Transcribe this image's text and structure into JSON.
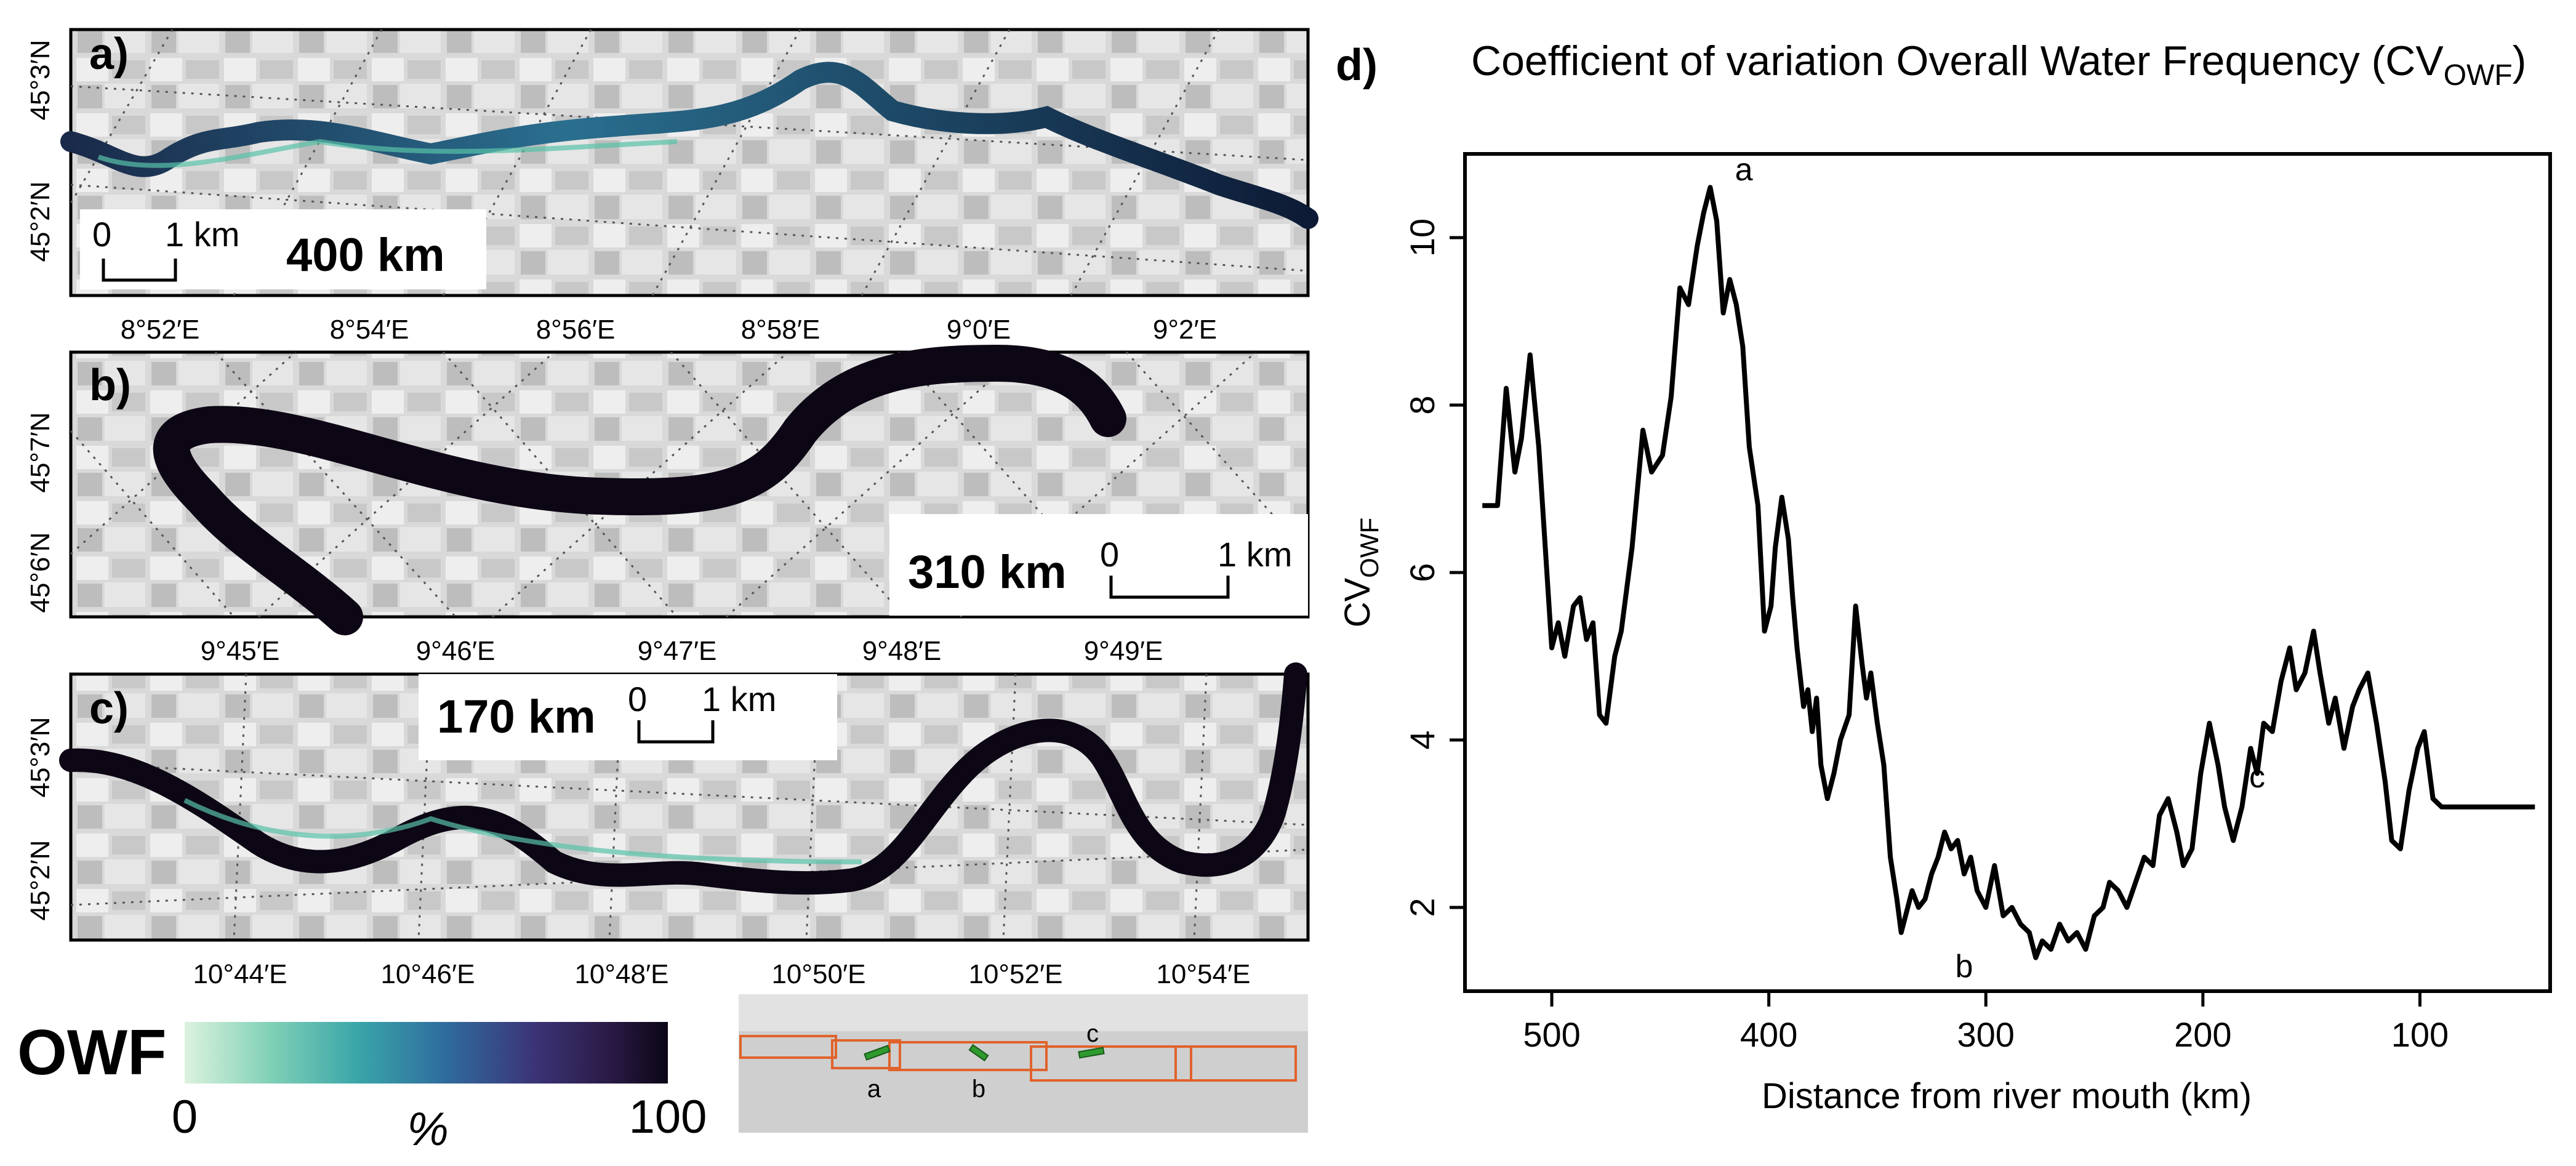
{
  "maps": [
    {
      "letter": "a)",
      "distance_label": "400 km",
      "scale_zero": "0",
      "scale_one": "1 km",
      "lon_ticks": [
        "8°52′E",
        "8°54′E",
        "8°56′E",
        "8°58′E",
        "9°0′E",
        "9°2′E"
      ],
      "lat_ticks": [
        "45°3′N",
        "45°2′N"
      ]
    },
    {
      "letter": "b)",
      "distance_label": "310 km",
      "scale_zero": "0",
      "scale_one": "1 km",
      "lon_ticks": [
        "9°45′E",
        "9°46′E",
        "9°47′E",
        "9°48′E",
        "9°49′E"
      ],
      "lat_ticks": [
        "45°7′N",
        "45°6′N"
      ]
    },
    {
      "letter": "c)",
      "distance_label": "170 km",
      "scale_zero": "0",
      "scale_one": "1 km",
      "lon_ticks": [
        "10°44′E",
        "10°46′E",
        "10°48′E",
        "10°50′E",
        "10°52′E",
        "10°54′E"
      ],
      "lat_ticks": [
        "45°3′N",
        "45°2′N"
      ]
    }
  ],
  "legend": {
    "title": "OWF",
    "min": "0",
    "unit": "%",
    "max": "100",
    "colors": [
      "#dcf2de",
      "#7fd0b6",
      "#39a5a8",
      "#2f6c9e",
      "#3b3578",
      "#2a1a45",
      "#0b0616"
    ]
  },
  "overview": {
    "labels": [
      "a",
      "b",
      "c"
    ],
    "box_color": "#e0632c",
    "marker_color": "#2e9a2e"
  },
  "chart_data": {
    "type": "line",
    "panel_letter": "d)",
    "title_main": "Coefficient of variation Overall Water Frequency (CV",
    "title_sub": "OWF",
    "title_end": ")",
    "ylabel_main": "CV",
    "ylabel_sub": "OWF",
    "xlabel": "Distance from river mouth (km)",
    "xlim": [
      540,
      40
    ],
    "ylim": [
      1,
      11
    ],
    "x_ticks": [
      500,
      400,
      300,
      200,
      100
    ],
    "y_ticks": [
      2,
      4,
      6,
      8,
      10
    ],
    "line_color": "#000000",
    "x": [
      532,
      525,
      521,
      517,
      514,
      510,
      506,
      500,
      497,
      494,
      490,
      487,
      484,
      481,
      478,
      475,
      471,
      468,
      463,
      458,
      454,
      449,
      445,
      441,
      437,
      433,
      430,
      427,
      424,
      421,
      418,
      415,
      412,
      409,
      405,
      402,
      399,
      397,
      394,
      391,
      389,
      387,
      384,
      382,
      380,
      378,
      376,
      373,
      370,
      367,
      363,
      360,
      357,
      355,
      353,
      350,
      347,
      344,
      341,
      339,
      337,
      334,
      331,
      328,
      325,
      322,
      319,
      316,
      313,
      310,
      307,
      304,
      300,
      296,
      292,
      288,
      284,
      280,
      277,
      274,
      270,
      266,
      262,
      258,
      254,
      250,
      246,
      243,
      239,
      235,
      231,
      227,
      223,
      220,
      216,
      212,
      209,
      205,
      201,
      197,
      193,
      190,
      186,
      182,
      178,
      175,
      172,
      168,
      164,
      160,
      157,
      153,
      149,
      146,
      142,
      139,
      135,
      131,
      128,
      124,
      120,
      116,
      113,
      109,
      105,
      101,
      98,
      94,
      90,
      86,
      83,
      79,
      75,
      72,
      68,
      64,
      61,
      57,
      54,
      50,
      47
    ],
    "y": [
      6.8,
      6.8,
      8.2,
      7.2,
      7.6,
      8.6,
      7.5,
      5.1,
      5.4,
      5.0,
      5.6,
      5.7,
      5.2,
      5.4,
      4.3,
      4.2,
      5.0,
      5.3,
      6.3,
      7.7,
      7.2,
      7.4,
      8.1,
      9.4,
      9.2,
      9.9,
      10.3,
      10.6,
      10.2,
      9.1,
      9.5,
      9.2,
      8.7,
      7.5,
      6.8,
      5.3,
      5.6,
      6.3,
      6.9,
      6.4,
      5.7,
      5.1,
      4.4,
      4.6,
      4.1,
      4.5,
      3.7,
      3.3,
      3.6,
      4.0,
      4.3,
      5.6,
      4.9,
      4.5,
      4.8,
      4.2,
      3.7,
      2.6,
      2.1,
      1.7,
      1.9,
      2.2,
      2.0,
      2.1,
      2.4,
      2.6,
      2.9,
      2.7,
      2.8,
      2.4,
      2.6,
      2.2,
      2.0,
      2.5,
      1.9,
      2.0,
      1.8,
      1.7,
      1.4,
      1.6,
      1.5,
      1.8,
      1.6,
      1.7,
      1.5,
      1.9,
      2.0,
      2.3,
      2.2,
      2.0,
      2.3,
      2.6,
      2.5,
      3.1,
      3.3,
      2.9,
      2.5,
      2.7,
      3.6,
      4.2,
      3.7,
      3.2,
      2.8,
      3.2,
      3.9,
      3.6,
      4.2,
      4.1,
      4.7,
      5.1,
      4.6,
      4.8,
      5.3,
      4.8,
      4.2,
      4.5,
      3.9,
      4.4,
      4.6,
      4.8,
      4.2,
      3.5,
      2.8,
      2.7,
      3.4,
      3.9,
      4.1,
      3.3,
      3.2,
      3.2,
      3.2,
      3.2,
      3.2,
      3.2,
      3.2,
      3.2,
      3.2,
      3.2,
      3.2,
      3.2,
      3.2
    ],
    "annotations": [
      {
        "label": "a",
        "x": 420,
        "y": 10.55
      },
      {
        "label": "b",
        "x": 310,
        "y": 1.72
      },
      {
        "label": "c",
        "x": 175,
        "y": 3.3
      }
    ]
  }
}
